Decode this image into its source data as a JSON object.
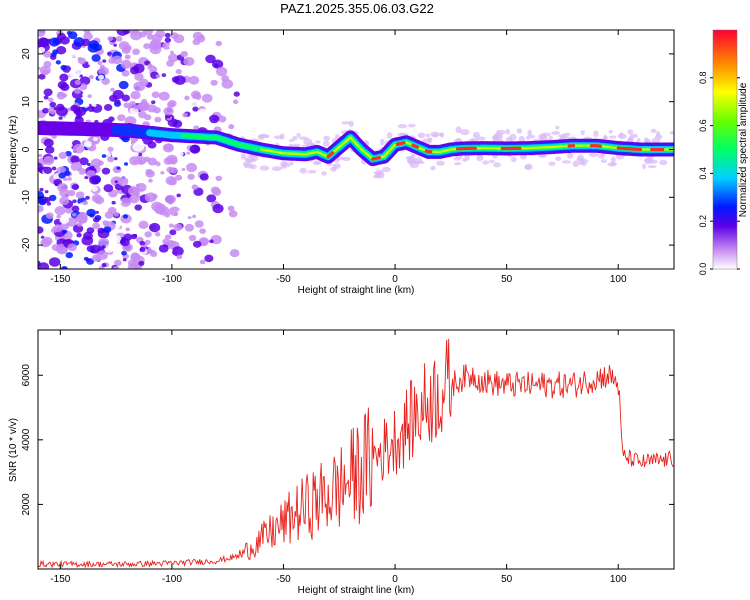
{
  "title": "PAZ1.2025.355.06.03.G22",
  "chart_data": [
    {
      "type": "heatmap",
      "xlabel": "Height of straight line (km)",
      "ylabel": "Frequency (Hz)",
      "xlim": [
        -160,
        125
      ],
      "ylim": [
        -25,
        25
      ],
      "xticks": [
        -150,
        -100,
        -50,
        0,
        50,
        100
      ],
      "yticks": [
        -20,
        -10,
        0,
        10,
        20
      ],
      "grid": false,
      "colorbar": {
        "label": "Normalized spectral amplitude",
        "range": [
          0,
          1
        ],
        "ticks": [
          "0.0",
          "0.2",
          "0.4",
          "0.6",
          "0.8"
        ]
      },
      "ridge": {
        "x": [
          -160,
          -140,
          -120,
          -100,
          -80,
          -70,
          -60,
          -50,
          -40,
          -35,
          -30,
          -25,
          -20,
          -15,
          -10,
          -5,
          0,
          5,
          10,
          15,
          20,
          25,
          30,
          40,
          50,
          60,
          70,
          80,
          90,
          100,
          110,
          125
        ],
        "y": [
          4.5,
          4.3,
          4.0,
          3.0,
          2.5,
          1.0,
          0.0,
          -0.8,
          -1.0,
          -0.5,
          -1.5,
          0.5,
          2.5,
          0.0,
          -2.0,
          -1.5,
          1.0,
          1.5,
          0.5,
          -0.5,
          -0.5,
          0.0,
          0.2,
          0.3,
          0.2,
          0.3,
          0.5,
          0.8,
          0.8,
          0.3,
          0.0,
          0.0
        ]
      }
    },
    {
      "type": "line",
      "xlabel": "Height of straight line (km)",
      "ylabel": "SNR (10 * v/v)",
      "xlim": [
        -160,
        125
      ],
      "ylim": [
        0,
        7400
      ],
      "xticks": [
        -150,
        -100,
        -50,
        0,
        50,
        100
      ],
      "yticks": [
        2000,
        4000,
        6000
      ],
      "series": [
        {
          "color": "#e8231f",
          "x": [
            -160,
            -140,
            -120,
            -100,
            -80,
            -70,
            -60,
            -50,
            -45,
            -40,
            -35,
            -30,
            -25,
            -20,
            -15,
            -10,
            -5,
            0,
            5,
            10,
            15,
            20,
            25,
            30,
            35,
            40,
            50,
            60,
            70,
            80,
            90,
            95,
            100,
            102,
            110,
            125
          ],
          "y": [
            150,
            150,
            150,
            180,
            250,
            400,
            900,
            1400,
            1700,
            1900,
            2100,
            2300,
            2500,
            2800,
            3100,
            3400,
            3700,
            4000,
            4400,
            4800,
            5200,
            5500,
            5700,
            5900,
            6000,
            5800,
            5700,
            5700,
            5700,
            5700,
            5900,
            6000,
            5800,
            3500,
            3300,
            3400
          ]
        }
      ]
    }
  ]
}
